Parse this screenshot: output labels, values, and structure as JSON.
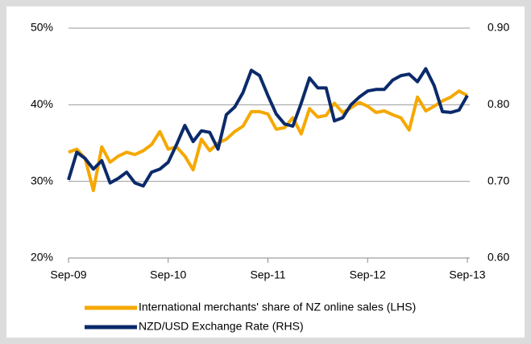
{
  "chart_data": {
    "type": "line",
    "categories": [
      "Sep-09",
      null,
      null,
      null,
      null,
      null,
      null,
      null,
      null,
      null,
      null,
      null,
      "Sep-10",
      null,
      null,
      null,
      null,
      null,
      null,
      null,
      null,
      null,
      null,
      null,
      "Sep-11",
      null,
      null,
      null,
      null,
      null,
      null,
      null,
      null,
      null,
      null,
      null,
      "Sep-12",
      null,
      null,
      null,
      null,
      null,
      null,
      null,
      null,
      null,
      null,
      null,
      "Sep-13"
    ],
    "series": [
      {
        "name": "International merchants' share of NZ online sales (LHS)",
        "color": "#f5a800",
        "values": [
          33.8,
          34.2,
          33.0,
          28.8,
          34.5,
          32.5,
          33.3,
          33.8,
          33.5,
          34.0,
          34.8,
          36.5,
          34.2,
          34.5,
          33.3,
          31.5,
          35.5,
          34.0,
          35.0,
          35.5,
          36.5,
          37.2,
          39.1,
          39.1,
          38.8,
          36.8,
          37.0,
          38.3,
          36.2,
          39.5,
          38.4,
          38.6,
          40.2,
          39.0,
          39.6,
          40.3,
          39.8,
          39.0,
          39.2,
          38.7,
          38.3,
          36.7,
          41.0,
          39.2,
          39.8,
          40.5,
          41.0,
          41.8,
          41.2
        ]
      },
      {
        "name": "NZD/USD Exchange Rate (RHS)",
        "color": "#0b2a6b",
        "axis": "y2",
        "values": [
          0.702,
          0.738,
          0.73,
          0.716,
          0.727,
          0.698,
          0.704,
          0.712,
          0.698,
          0.694,
          0.712,
          0.716,
          0.725,
          0.748,
          0.773,
          0.752,
          0.766,
          0.764,
          0.742,
          0.787,
          0.797,
          0.816,
          0.845,
          0.838,
          0.812,
          0.788,
          0.775,
          0.772,
          0.802,
          0.835,
          0.822,
          0.822,
          0.779,
          0.783,
          0.8,
          0.81,
          0.818,
          0.82,
          0.82,
          0.832,
          0.838,
          0.84,
          0.83,
          0.847,
          0.825,
          0.791,
          0.79,
          0.793,
          0.812
        ]
      }
    ],
    "ylim": [
      20,
      50
    ],
    "yticks": [
      {
        "value": 20,
        "label": "20%"
      },
      {
        "value": 30,
        "label": "30%"
      },
      {
        "value": 40,
        "label": "40%"
      },
      {
        "value": 50,
        "label": "50%"
      }
    ],
    "y2lim": [
      0.6,
      0.9
    ],
    "y2ticks": [
      {
        "value": 0.6,
        "label": "0.60"
      },
      {
        "value": 0.7,
        "label": "0.70"
      },
      {
        "value": 0.8,
        "label": "0.80"
      },
      {
        "value": 0.9,
        "label": "0.90"
      }
    ],
    "grid": true
  }
}
